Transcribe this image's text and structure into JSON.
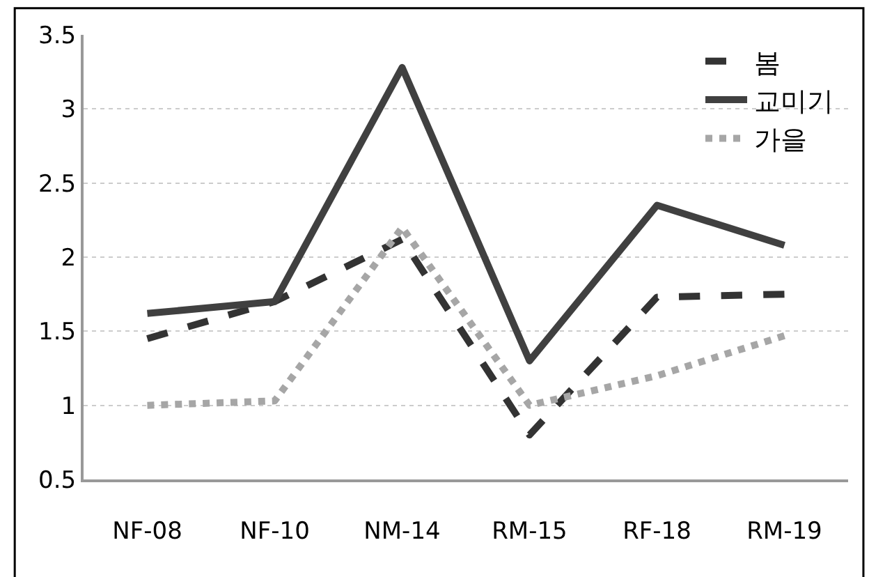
{
  "chart_data": {
    "type": "line",
    "categories": [
      "NF-08",
      "NF-10",
      "NM-14",
      "RM-15",
      "RF-18",
      "RM-19"
    ],
    "series": [
      {
        "name": "봄",
        "color": "#333333",
        "line_style": "dashed",
        "values": [
          1.45,
          1.7,
          2.12,
          0.8,
          1.73,
          1.75
        ]
      },
      {
        "name": "교미기",
        "color": "#404040",
        "line_style": "solid",
        "values": [
          1.62,
          1.7,
          3.28,
          1.3,
          2.35,
          2.08
        ]
      },
      {
        "name": "가을",
        "color": "#a6a6a6",
        "line_style": "dotted",
        "values": [
          1.0,
          1.03,
          2.2,
          1.0,
          1.2,
          1.47
        ]
      }
    ],
    "ylim": [
      0.5,
      3.5
    ],
    "yticks": [
      0.5,
      1,
      1.5,
      2,
      2.5,
      3,
      3.5
    ],
    "grid": "y",
    "legend": "top right",
    "marker": "none"
  }
}
